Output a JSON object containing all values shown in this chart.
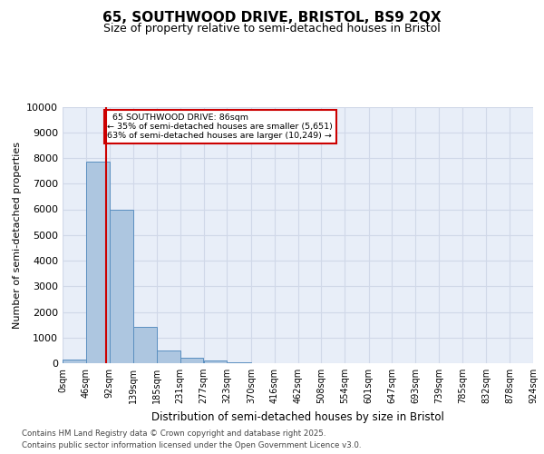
{
  "title_line1": "65, SOUTHWOOD DRIVE, BRISTOL, BS9 2QX",
  "title_line2": "Size of property relative to semi-detached houses in Bristol",
  "xlabel": "Distribution of semi-detached houses by size in Bristol",
  "ylabel": "Number of semi-detached properties",
  "property_label": "65 SOUTHWOOD DRIVE: 86sqm",
  "pct_smaller": 35,
  "count_smaller": 5651,
  "pct_larger": 63,
  "count_larger": 10249,
  "bin_edges": [
    0,
    46,
    92,
    139,
    185,
    231,
    277,
    323,
    370,
    416,
    462,
    508,
    554,
    601,
    647,
    693,
    739,
    785,
    832,
    878,
    924
  ],
  "bin_labels": [
    "0sqm",
    "46sqm",
    "92sqm",
    "139sqm",
    "185sqm",
    "231sqm",
    "277sqm",
    "323sqm",
    "370sqm",
    "416sqm",
    "462sqm",
    "508sqm",
    "554sqm",
    "601sqm",
    "647sqm",
    "693sqm",
    "739sqm",
    "785sqm",
    "832sqm",
    "878sqm",
    "924sqm"
  ],
  "bar_heights": [
    150,
    7850,
    6000,
    1400,
    500,
    200,
    100,
    50,
    10,
    5,
    2,
    1,
    0,
    0,
    0,
    0,
    0,
    0,
    0,
    0
  ],
  "bar_color": "#adc6e0",
  "bar_edge_color": "#5a8fc0",
  "vline_color": "#cc0000",
  "vline_x": 86,
  "annotation_box_color": "#cc0000",
  "ylim": [
    0,
    10000
  ],
  "yticks": [
    0,
    1000,
    2000,
    3000,
    4000,
    5000,
    6000,
    7000,
    8000,
    9000,
    10000
  ],
  "grid_color": "#d0d8e8",
  "plot_bg_color": "#e8eef8",
  "footer_line1": "Contains HM Land Registry data © Crown copyright and database right 2025.",
  "footer_line2": "Contains public sector information licensed under the Open Government Licence v3.0."
}
